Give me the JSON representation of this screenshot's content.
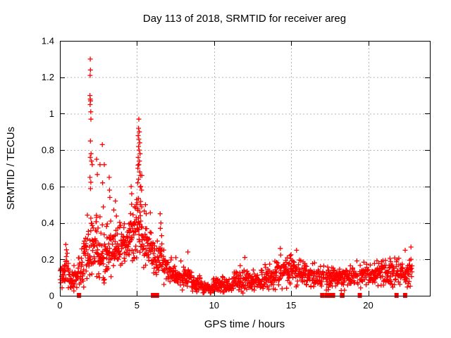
{
  "title": "Day 113 of 2018, SRMTID for receiver areg",
  "x_axis": {
    "label": "GPS time / hours",
    "tick_labels": [
      "0",
      "5",
      "10",
      "15",
      "20"
    ],
    "tick_values": [
      0,
      5,
      10,
      15,
      20
    ]
  },
  "y_axis": {
    "label": "SRMTID / TECUs",
    "tick_labels": [
      "0",
      "0.2",
      "0.4",
      "0.6",
      "0.8",
      "1",
      "1.2",
      "1.4"
    ],
    "tick_values": [
      0,
      0.2,
      0.4,
      0.6,
      0.8,
      1,
      1.2,
      1.4
    ]
  },
  "colors": {
    "marker": "#ff0000",
    "grid": "#b4b4b4",
    "axis": "#000000",
    "background": "#ffffff"
  },
  "chart_data": {
    "type": "scatter",
    "title": "Day 113 of 2018, SRMTID for receiver areg",
    "xlabel": "GPS time / hours",
    "ylabel": "SRMTID / TECUs",
    "xlim": [
      0,
      24
    ],
    "ylim": [
      0,
      1.4
    ],
    "grid": true,
    "legend": "none",
    "marker": "plus",
    "marker_color": "#ff0000",
    "seed": 20180413,
    "summary": "Dense 30-s scatter of SRMTID vs GPS time. Quiet baseline ~0.05-0.2 TECU; large activity peak near 2.0 h reaching 1.30 TECU; second peak near 5.1 h reaching 0.97 TECU; broad minimum ~0.04 TECU near 9.5 h; mild bumps ~0.25 near 14.5 and 15.4 h; data ends ~22.9 h. Filled squares on the axis mark zero-value dropouts.",
    "bands": [
      [
        0.02,
        0.3,
        0.12,
        0.055,
        2.0,
        0,
        0
      ],
      [
        0.3,
        0.55,
        0.16,
        0.07,
        2.2,
        0.05,
        0.08
      ],
      [
        0.55,
        1.15,
        0.09,
        0.04,
        2.0,
        0,
        0
      ],
      [
        1.15,
        1.55,
        0.13,
        0.055,
        1.8,
        0.05,
        0.08
      ],
      [
        1.55,
        1.95,
        0.22,
        0.09,
        2.2,
        0.1,
        0.2
      ],
      [
        1.95,
        2.45,
        0.28,
        0.12,
        2.6,
        0.12,
        0.3
      ],
      [
        2.45,
        3.05,
        0.21,
        0.07,
        2.4,
        0.08,
        0.25
      ],
      [
        3.05,
        3.55,
        0.24,
        0.07,
        2.4,
        0.08,
        0.2
      ],
      [
        3.55,
        4.35,
        0.27,
        0.07,
        2.4,
        0.06,
        0.15
      ],
      [
        4.35,
        4.95,
        0.32,
        0.08,
        2.6,
        0.08,
        0.18
      ],
      [
        4.95,
        5.35,
        0.38,
        0.09,
        2.8,
        0.15,
        0.25
      ],
      [
        5.35,
        6.05,
        0.27,
        0.07,
        2.0,
        0.06,
        0.15
      ],
      [
        6.05,
        6.75,
        0.19,
        0.06,
        1.9,
        0.06,
        0.15
      ],
      [
        6.75,
        7.55,
        0.13,
        0.045,
        1.9,
        0.04,
        0.08
      ],
      [
        7.55,
        8.55,
        0.1,
        0.035,
        1.9,
        0.03,
        0.06
      ],
      [
        8.55,
        9.25,
        0.065,
        0.025,
        1.8,
        0,
        0
      ],
      [
        9.25,
        9.95,
        0.04,
        0.018,
        1.8,
        0,
        0
      ],
      [
        9.95,
        10.65,
        0.06,
        0.025,
        1.8,
        0,
        0
      ],
      [
        10.65,
        11.25,
        0.055,
        0.022,
        1.8,
        0,
        0
      ],
      [
        11.25,
        12.55,
        0.085,
        0.035,
        1.9,
        0.03,
        0.05
      ],
      [
        12.55,
        13.25,
        0.08,
        0.03,
        1.8,
        0,
        0
      ],
      [
        13.25,
        14.05,
        0.11,
        0.04,
        1.9,
        0.03,
        0.05
      ],
      [
        14.05,
        14.85,
        0.145,
        0.05,
        1.9,
        0.03,
        0.06
      ],
      [
        14.85,
        15.65,
        0.135,
        0.05,
        1.9,
        0.03,
        0.07
      ],
      [
        15.65,
        16.55,
        0.115,
        0.04,
        1.9,
        0,
        0
      ],
      [
        16.55,
        17.15,
        0.1,
        0.035,
        1.7,
        0,
        0
      ],
      [
        17.25,
        18.25,
        0.1,
        0.035,
        1.8,
        0,
        0
      ],
      [
        18.25,
        19.35,
        0.105,
        0.04,
        1.8,
        0,
        0
      ],
      [
        19.45,
        20.45,
        0.115,
        0.04,
        1.8,
        0,
        0
      ],
      [
        20.45,
        21.45,
        0.13,
        0.045,
        1.9,
        0,
        0
      ],
      [
        21.45,
        22.15,
        0.12,
        0.05,
        1.8,
        0.04,
        0.06
      ],
      [
        22.15,
        22.85,
        0.14,
        0.055,
        1.8,
        0.05,
        0.09
      ]
    ],
    "spikes": [
      [
        1.97,
        1.3
      ],
      [
        1.98,
        1.24
      ],
      [
        1.96,
        1.21
      ],
      [
        1.95,
        1.1
      ],
      [
        1.97,
        1.08
      ],
      [
        1.99,
        1.07
      ],
      [
        1.96,
        1.05
      ],
      [
        2.0,
        1.01
      ],
      [
        2.01,
        0.97
      ],
      [
        1.98,
        0.85
      ],
      [
        2.02,
        0.78
      ],
      [
        1.97,
        0.76
      ],
      [
        2.05,
        0.74
      ],
      [
        2.1,
        0.72
      ],
      [
        2.38,
        0.75
      ],
      [
        2.6,
        0.72
      ],
      [
        2.75,
        0.83
      ],
      [
        2.88,
        0.72
      ],
      [
        2.77,
        0.62
      ],
      [
        3.2,
        0.65
      ],
      [
        3.22,
        0.58
      ],
      [
        3.24,
        0.54
      ],
      [
        3.6,
        0.52
      ],
      [
        4.62,
        0.6
      ],
      [
        4.66,
        0.56
      ],
      [
        5.12,
        0.97
      ],
      [
        5.1,
        0.92
      ],
      [
        5.15,
        0.9
      ],
      [
        5.08,
        0.88
      ],
      [
        5.12,
        0.86
      ],
      [
        5.18,
        0.84
      ],
      [
        5.1,
        0.82
      ],
      [
        5.14,
        0.8
      ],
      [
        5.2,
        0.78
      ],
      [
        5.08,
        0.76
      ],
      [
        5.16,
        0.74
      ],
      [
        5.12,
        0.72
      ],
      [
        5.06,
        0.7
      ],
      [
        5.18,
        0.68
      ],
      [
        5.22,
        0.66
      ],
      [
        5.1,
        0.64
      ],
      [
        5.05,
        0.62
      ],
      [
        5.25,
        0.6
      ],
      [
        5.3,
        0.58
      ],
      [
        5.55,
        0.5
      ],
      [
        5.6,
        0.45
      ],
      [
        6.5,
        0.45
      ],
      [
        6.55,
        0.4
      ],
      [
        6.52,
        0.37
      ],
      [
        6.6,
        0.33
      ],
      [
        8.3,
        0.24
      ],
      [
        12.0,
        0.21
      ],
      [
        14.3,
        0.26
      ],
      [
        15.35,
        0.25
      ],
      [
        22.4,
        0.25
      ]
    ],
    "zero_runs": [
      [
        1.1,
        1.38
      ],
      [
        5.9,
        6.1
      ],
      [
        6.16,
        6.36
      ],
      [
        16.88,
        17.1
      ],
      [
        17.16,
        17.32
      ],
      [
        17.4,
        17.52
      ],
      [
        17.58,
        17.8
      ],
      [
        18.16,
        18.46
      ],
      [
        19.32,
        19.48
      ],
      [
        21.7,
        21.92
      ],
      [
        22.26,
        22.52
      ]
    ]
  }
}
